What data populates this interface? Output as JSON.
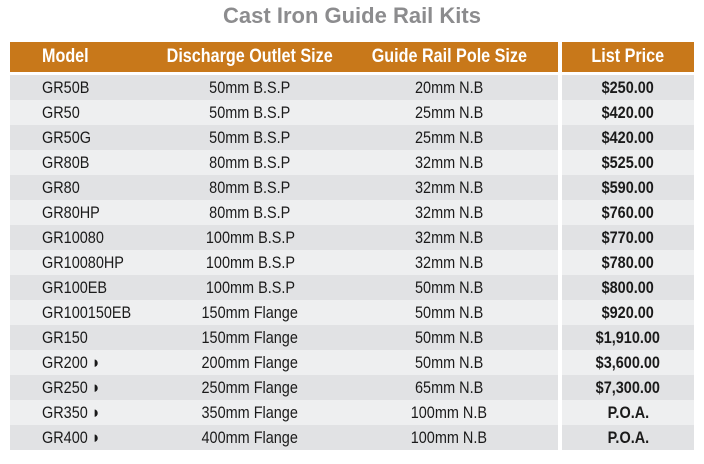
{
  "title": "Cast Iron Guide Rail Kits",
  "colors": {
    "header": "#c8781a",
    "row_dark": "#e1e2e4",
    "row_light": "#eeeff0",
    "title": "#8c8c8e"
  },
  "headers": [
    "Model",
    "Discharge Outlet Size",
    "Guide Rail Pole Size",
    "List Price"
  ],
  "rows": [
    [
      "GR50B",
      "50mm B.S.P",
      "20mm N.B",
      "$250.00"
    ],
    [
      "GR50",
      "50mm B.S.P",
      "25mm N.B",
      "$420.00"
    ],
    [
      "GR50G",
      "50mm B.S.P",
      "25mm N.B",
      "$420.00"
    ],
    [
      "GR80B",
      "80mm B.S.P",
      "32mm N.B",
      "$525.00"
    ],
    [
      "GR80",
      "80mm B.S.P",
      "32mm N.B",
      "$590.00"
    ],
    [
      "GR80HP",
      "80mm B.S.P",
      "32mm N.B",
      "$760.00"
    ],
    [
      "GR10080",
      "100mm B.S.P",
      "32mm N.B",
      "$770.00"
    ],
    [
      "GR10080HP",
      "100mm B.S.P",
      "32mm N.B",
      "$780.00"
    ],
    [
      "GR100EB",
      "100mm B.S.P",
      "50mm N.B",
      "$800.00"
    ],
    [
      "GR100150EB",
      "150mm Flange",
      "50mm N.B",
      "$920.00"
    ],
    [
      "GR150",
      "150mm Flange",
      "50mm N.B",
      "$1,910.00"
    ],
    [
      "GR200 ◗",
      "200mm Flange",
      "50mm N.B",
      "$3,600.00"
    ],
    [
      "GR250 ◗",
      "250mm Flange",
      "65mm N.B",
      "$7,300.00"
    ],
    [
      "GR350 ◗",
      "350mm Flange",
      "100mm N.B",
      "P.O.A."
    ],
    [
      "GR400 ◗",
      "400mm Flange",
      "100mm N.B",
      "P.O.A."
    ]
  ]
}
